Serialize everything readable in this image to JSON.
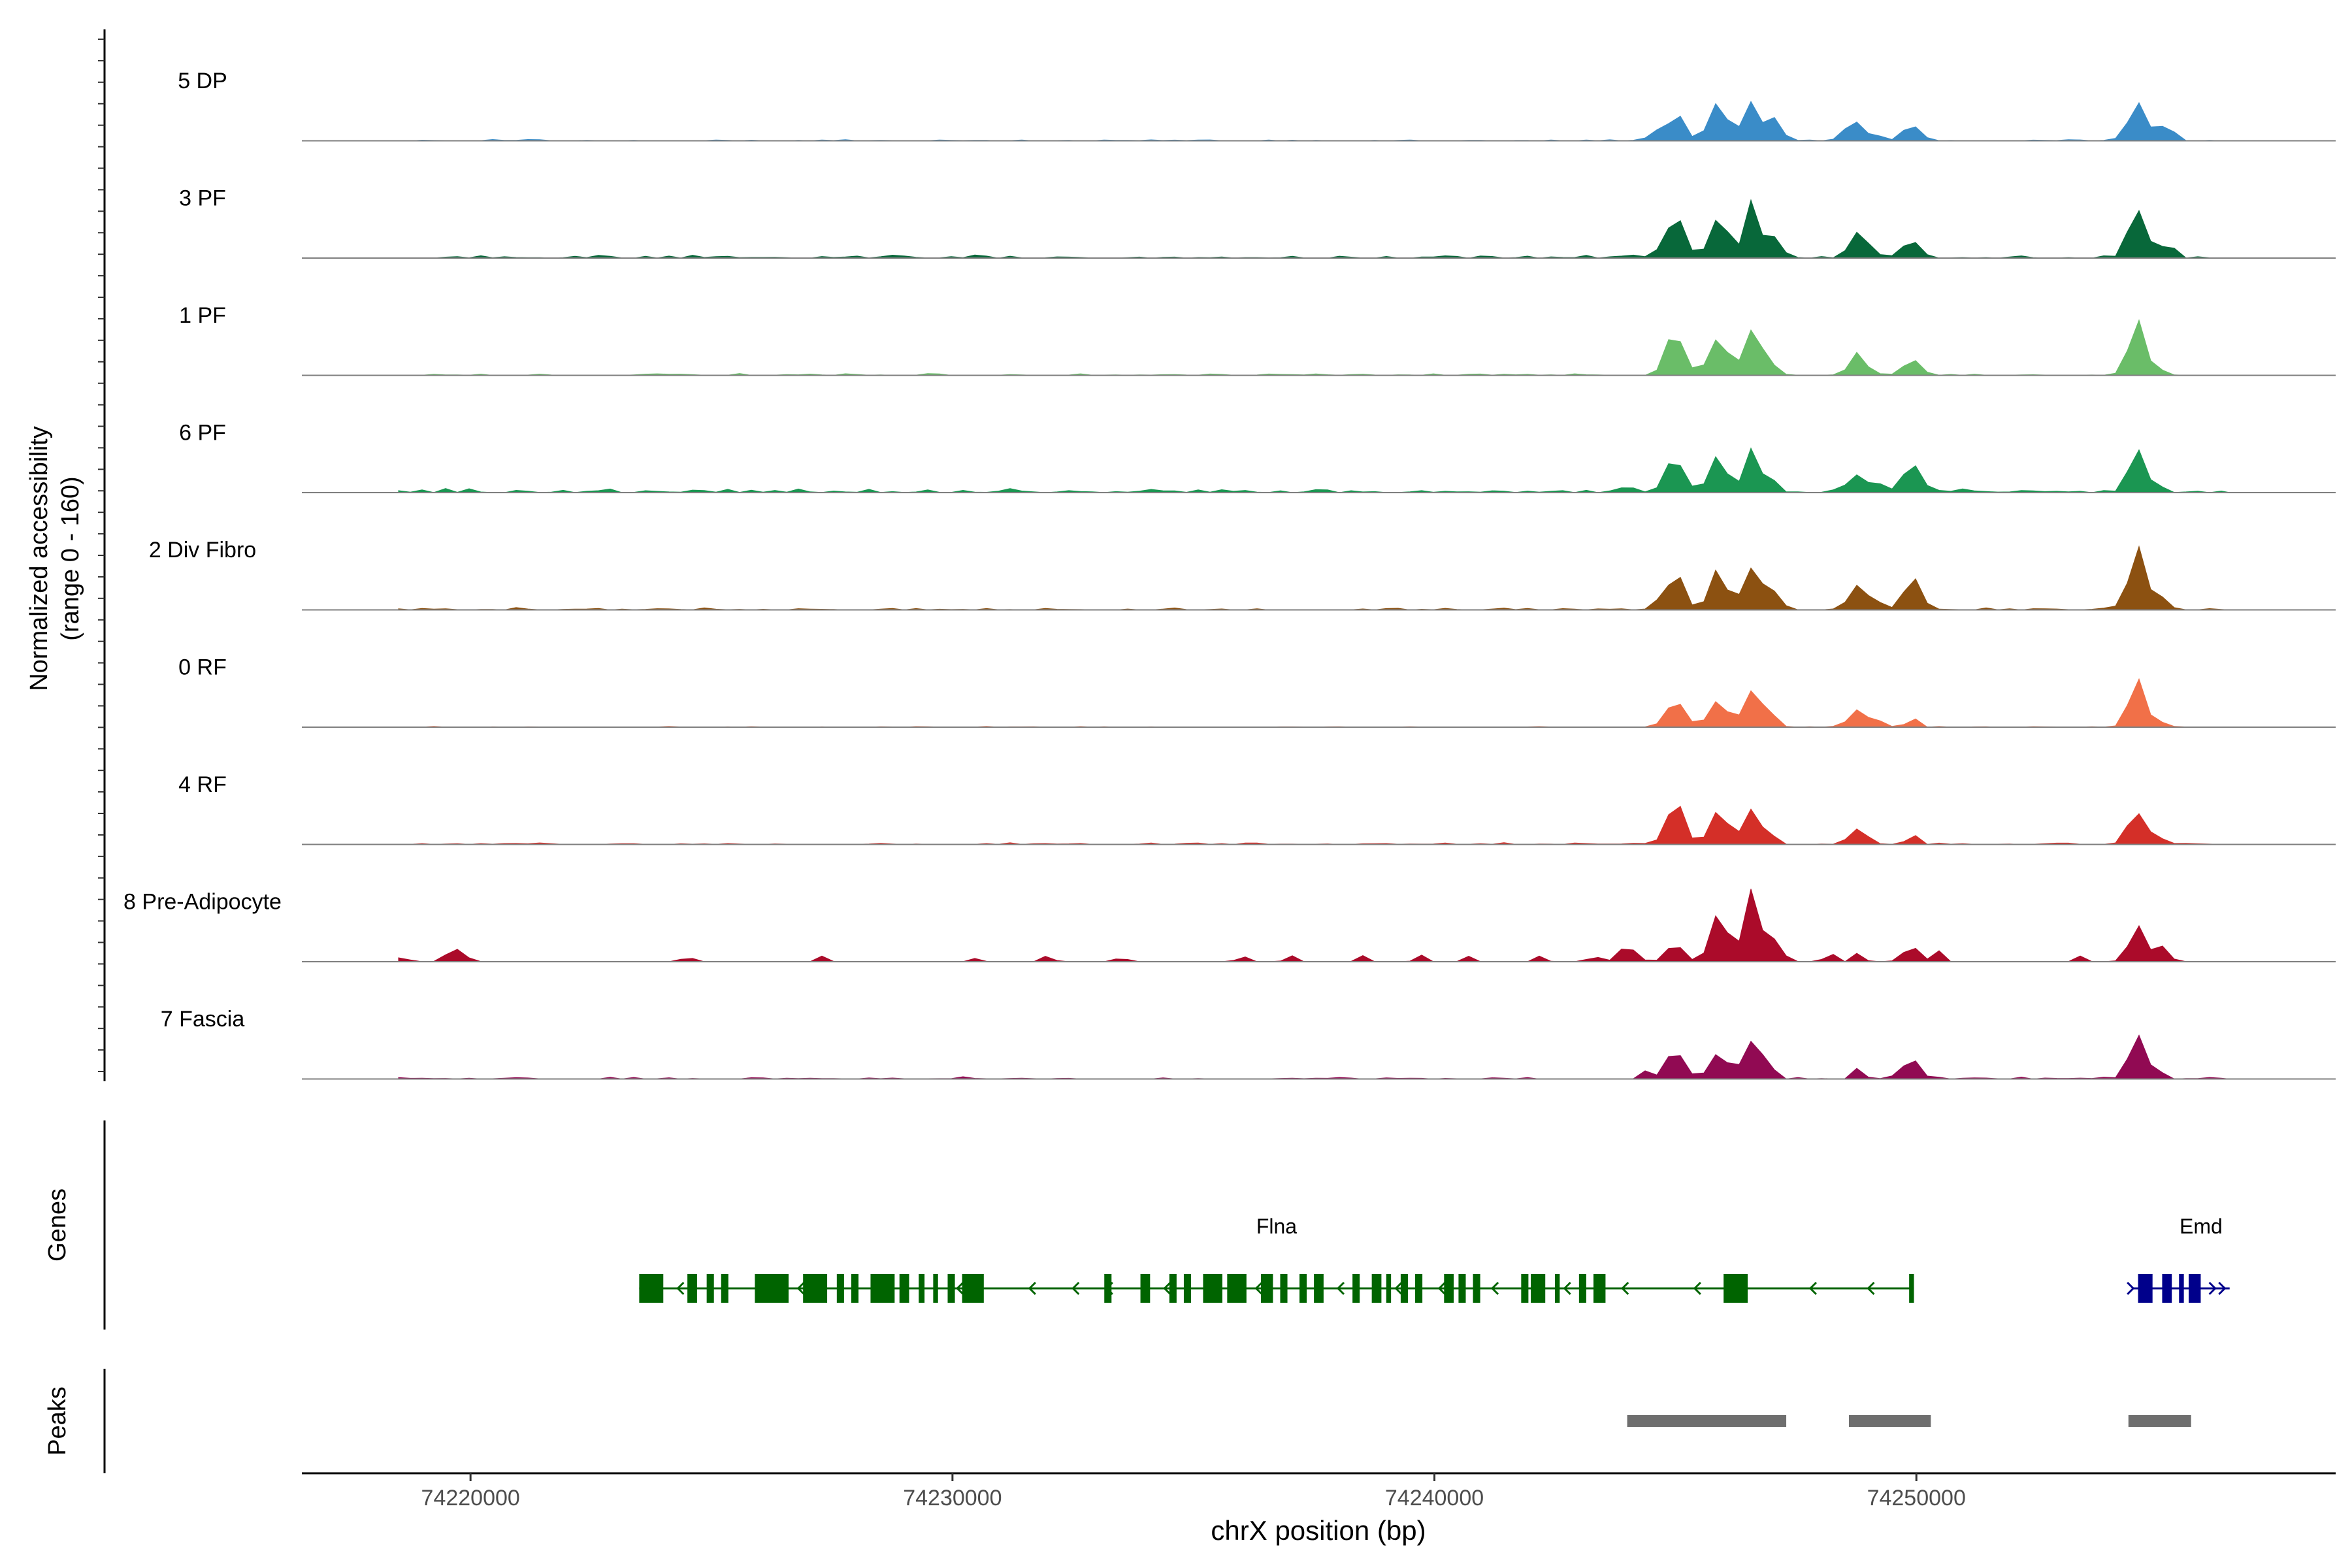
{
  "chart_data": {
    "type": "area",
    "chromosome": "chrX",
    "xlabel": "chrX position (bp)",
    "ylabel_line1": "Normalized accessibility",
    "ylabel_line2": "(range 0 - 160)",
    "y_range": [
      0,
      160
    ],
    "xlim": [
      74216500,
      74258700
    ],
    "x_ticks": [
      74220000,
      74230000,
      74240000,
      74250000
    ],
    "x_tick_labels": [
      "74220000",
      "74230000",
      "74240000",
      "74250000"
    ],
    "track_start": 74218500,
    "track_end": 74256500,
    "tracks": [
      {
        "name": "5 DP",
        "color": "#3A8CC8",
        "noise": 0.03,
        "peaks": [
          [
            74244700,
            0.33
          ],
          [
            74245000,
            0.62
          ],
          [
            74245900,
            0.95
          ],
          [
            74246600,
            1.0
          ],
          [
            74247000,
            0.55
          ],
          [
            74248700,
            0.48
          ],
          [
            74249100,
            0.3
          ],
          [
            74249900,
            0.4
          ],
          [
            74254600,
            1.05
          ],
          [
            74255000,
            0.45
          ],
          [
            74255300,
            0.25
          ]
        ]
      },
      {
        "name": "3 PF",
        "color": "#08683A",
        "noise": 0.07,
        "peaks": [
          [
            74244000,
            0.1
          ],
          [
            74244600,
            0.2
          ],
          [
            74245000,
            1.05
          ],
          [
            74245900,
            0.95
          ],
          [
            74246600,
            1.2
          ],
          [
            74247000,
            0.45
          ],
          [
            74248800,
            0.7
          ],
          [
            74249100,
            0.3
          ],
          [
            74249900,
            0.4
          ],
          [
            74254600,
            1.2
          ],
          [
            74255000,
            0.35
          ],
          [
            74255300,
            0.25
          ]
        ]
      },
      {
        "name": "1 PF",
        "color": "#6ABD68",
        "noise": 0.04,
        "peaks": [
          [
            74245000,
            1.1
          ],
          [
            74245900,
            0.95
          ],
          [
            74246600,
            1.2
          ],
          [
            74247000,
            0.25
          ],
          [
            74248800,
            0.45
          ],
          [
            74249900,
            0.35
          ],
          [
            74254600,
            1.2
          ],
          [
            74255000,
            0.2
          ]
        ]
      },
      {
        "name": "6 PF",
        "color": "#1B9652",
        "noise": 0.1,
        "peaks": [
          [
            74244000,
            0.1
          ],
          [
            74245000,
            0.9
          ],
          [
            74245900,
            0.8
          ],
          [
            74246600,
            0.95
          ],
          [
            74247000,
            0.3
          ],
          [
            74248800,
            0.4
          ],
          [
            74249300,
            0.25
          ],
          [
            74249900,
            0.6
          ],
          [
            74254600,
            0.95
          ],
          [
            74255000,
            0.2
          ]
        ]
      },
      {
        "name": "2 Div Fibro",
        "color": "#8C5111",
        "noise": 0.05,
        "peaks": [
          [
            74244600,
            0.2
          ],
          [
            74245000,
            0.8
          ],
          [
            74245900,
            0.9
          ],
          [
            74246600,
            1.15
          ],
          [
            74247000,
            0.4
          ],
          [
            74248800,
            0.65
          ],
          [
            74249200,
            0.2
          ],
          [
            74249900,
            0.75
          ],
          [
            74254600,
            1.5
          ],
          [
            74255000,
            0.4
          ]
        ]
      },
      {
        "name": "0 RF",
        "color": "#F17048",
        "noise": 0.02,
        "peaks": [
          [
            74245000,
            0.75
          ],
          [
            74245900,
            0.7
          ],
          [
            74246600,
            1.0
          ],
          [
            74247000,
            0.3
          ],
          [
            74248800,
            0.45
          ],
          [
            74249300,
            0.15
          ],
          [
            74249900,
            0.25
          ],
          [
            74254600,
            1.0
          ],
          [
            74255000,
            0.2
          ]
        ]
      },
      {
        "name": "4 RF",
        "color": "#D42F28",
        "noise": 0.04,
        "peaks": [
          [
            74245000,
            1.0
          ],
          [
            74245900,
            0.75
          ],
          [
            74246600,
            0.9
          ],
          [
            74247000,
            0.2
          ],
          [
            74248800,
            0.35
          ],
          [
            74249900,
            0.25
          ],
          [
            74254600,
            0.85
          ],
          [
            74255000,
            0.2
          ]
        ]
      },
      {
        "name": "8 Pre-Adipocyte",
        "color": "#AB0B2A",
        "noise": 0.0,
        "peaks": [
          [
            74218600,
            0.15
          ],
          [
            74219700,
            0.35
          ],
          [
            74224500,
            0.15
          ],
          [
            74227300,
            0.15
          ],
          [
            74230500,
            0.1
          ],
          [
            74232000,
            0.15
          ],
          [
            74233500,
            0.15
          ],
          [
            74236000,
            0.15
          ],
          [
            74237000,
            0.15
          ],
          [
            74238500,
            0.15
          ],
          [
            74239700,
            0.15
          ],
          [
            74240700,
            0.12
          ],
          [
            74242200,
            0.15
          ],
          [
            74243300,
            0.2
          ],
          [
            74244000,
            0.35
          ],
          [
            74245000,
            0.4
          ],
          [
            74245900,
            1.0
          ],
          [
            74246600,
            1.6
          ],
          [
            74247000,
            0.6
          ],
          [
            74248200,
            0.25
          ],
          [
            74248800,
            0.25
          ],
          [
            74249900,
            0.35
          ],
          [
            74250400,
            0.3
          ],
          [
            74253400,
            0.15
          ],
          [
            74254600,
            0.85
          ],
          [
            74255000,
            0.4
          ]
        ]
      },
      {
        "name": "7 Fascia",
        "color": "#910A53",
        "noise": 0.05,
        "peaks": [
          [
            74244400,
            0.2
          ],
          [
            74245000,
            0.75
          ],
          [
            74245900,
            0.7
          ],
          [
            74246600,
            1.0
          ],
          [
            74247000,
            0.25
          ],
          [
            74248800,
            0.3
          ],
          [
            74249900,
            0.45
          ],
          [
            74254600,
            1.0
          ],
          [
            74255000,
            0.25
          ]
        ]
      }
    ],
    "genes_label": "Genes",
    "genes": [
      {
        "name": "Flna",
        "color": "#006400",
        "start": 74223500,
        "end": 74249950,
        "strand": "-",
        "exons": [
          [
            74223500,
            74224000
          ],
          [
            74224500,
            74224700
          ],
          [
            74224900,
            74225050
          ],
          [
            74225200,
            74225350
          ],
          [
            74225900,
            74226600
          ],
          [
            74226900,
            74227400
          ],
          [
            74227600,
            74227750
          ],
          [
            74227900,
            74228050
          ],
          [
            74228300,
            74228800
          ],
          [
            74228900,
            74229100
          ],
          [
            74229300,
            74229420
          ],
          [
            74229600,
            74229700
          ],
          [
            74229900,
            74230050
          ],
          [
            74230200,
            74230650
          ],
          [
            74233150,
            74233300
          ],
          [
            74233900,
            74234100
          ],
          [
            74234500,
            74234650
          ],
          [
            74234800,
            74234950
          ],
          [
            74235200,
            74235600
          ],
          [
            74235700,
            74236100
          ],
          [
            74236400,
            74236650
          ],
          [
            74236800,
            74236950
          ],
          [
            74237200,
            74237350
          ],
          [
            74237500,
            74237700
          ],
          [
            74238300,
            74238450
          ],
          [
            74238700,
            74238900
          ],
          [
            74239000,
            74239100
          ],
          [
            74239300,
            74239450
          ],
          [
            74239600,
            74239750
          ],
          [
            74240200,
            74240400
          ],
          [
            74240500,
            74240650
          ],
          [
            74240800,
            74240950
          ],
          [
            74241800,
            74241950
          ],
          [
            74242000,
            74242300
          ],
          [
            74242500,
            74242600
          ],
          [
            74243000,
            74243150
          ],
          [
            74243300,
            74243550
          ],
          [
            74246000,
            74246500
          ],
          [
            74249850,
            74249950
          ]
        ],
        "arrows": [
          74224300,
          74226000,
          74226800,
          74230100,
          74231600,
          74232500,
          74233200,
          74234400,
          74236300,
          74238000,
          74239200,
          74240100,
          74241200,
          74242700,
          74243900,
          74245400,
          74246300,
          74247800,
          74249000
        ]
      },
      {
        "name": "Emd",
        "color": "#00008B",
        "start": 74254500,
        "end": 74256500,
        "strand": "+",
        "exons": [
          [
            74254600,
            74254900
          ],
          [
            74255100,
            74255300
          ],
          [
            74255450,
            74255550
          ],
          [
            74255650,
            74255900
          ]
        ],
        "arrows": [
          74254500,
          74256200,
          74256400
        ]
      }
    ],
    "peaks_label": "Peaks",
    "peak_color": "#6E6E6E",
    "peak_regions": [
      [
        74244000,
        74247300
      ],
      [
        74248600,
        74250300
      ],
      [
        74254400,
        74255700
      ]
    ]
  }
}
